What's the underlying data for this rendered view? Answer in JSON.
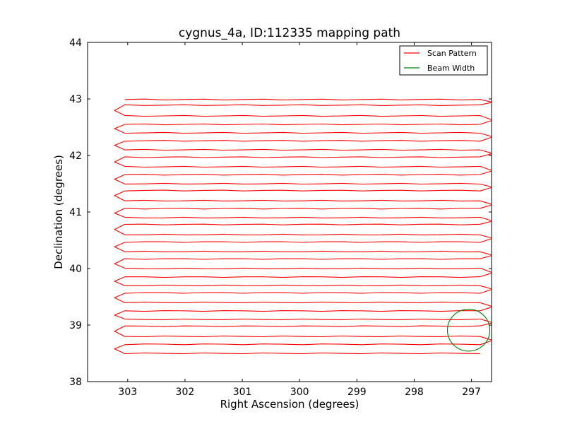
{
  "chart_data": {
    "type": "line",
    "title": "cygnus_4a, ID:112335 mapping path",
    "xlabel": "Right Ascension (degrees)",
    "ylabel": "Declination (degrees)",
    "xlim": [
      303.7,
      296.65
    ],
    "ylim": [
      38,
      44
    ],
    "x_reversed": true,
    "xticks": [
      "303",
      "302",
      "301",
      "300",
      "299",
      "298",
      "297"
    ],
    "xtick_values": [
      303,
      302,
      301,
      300,
      299,
      298,
      297
    ],
    "yticks": [
      "38",
      "39",
      "40",
      "41",
      "42",
      "43",
      "44"
    ],
    "ytick_values": [
      38,
      39,
      40,
      41,
      42,
      43,
      44
    ],
    "grid": false,
    "legend_position": "top-right",
    "colors": {
      "scan": "#ff0000",
      "beam": "#008000"
    },
    "series": [
      {
        "name": "Scan Pattern",
        "color": "#ff0000",
        "rows": [
          42.99,
          42.89,
          42.7,
          42.55,
          42.4,
          42.26,
          42.1,
          41.97,
          41.8,
          41.66,
          41.5,
          41.38,
          41.2,
          41.06,
          40.9,
          40.78,
          40.6,
          40.47,
          40.3,
          40.17,
          40.0,
          39.85,
          39.7,
          39.57,
          39.4,
          39.25,
          39.1,
          38.98,
          38.8,
          38.66,
          38.5
        ],
        "ra_east": 303.05,
        "ra_west": 296.85
      },
      {
        "name": "Beam Width",
        "color": "#008000",
        "center": [
          297.05,
          38.91
        ],
        "radius_deg": 0.37
      }
    ]
  }
}
